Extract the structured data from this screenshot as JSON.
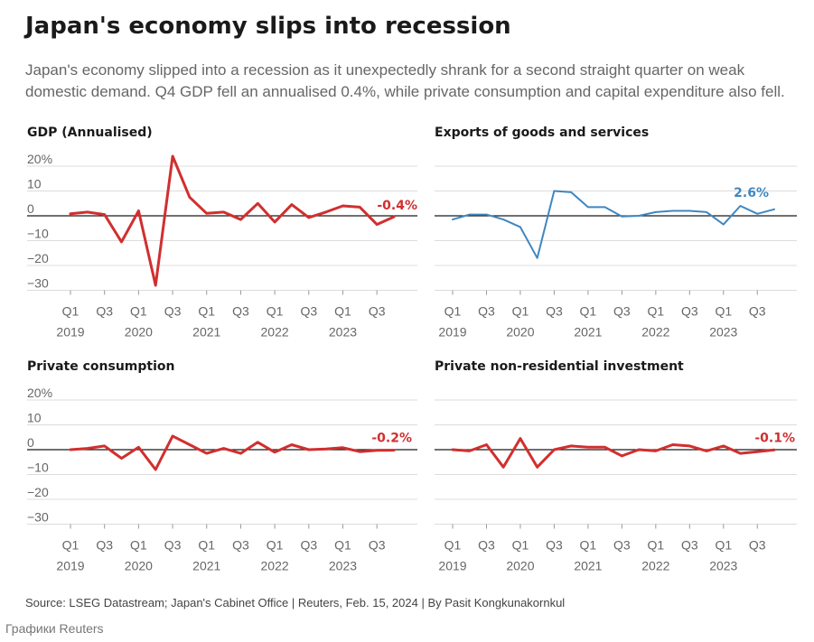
{
  "header": {
    "title": "Japan's economy slips into recession",
    "subtitle": "Japan's economy slipped into a recession as it unexpectedly shrank for a second straight quarter on weak domestic demand. Q4 GDP fell an annualised 0.4%, while private consumption and capital expenditure also fell."
  },
  "footer": {
    "source": "Source: LSEG Datastream; Japan's Cabinet Office | Reuters, Feb. 15, 2024 | By Pasit Kongkunakornkul",
    "credit": "Графики Reuters"
  },
  "colors": {
    "red": "#d12f2f",
    "blue": "#3f87c0",
    "axis": "#1a1a1a",
    "grid": "#dcdcdc"
  },
  "chart_data": [
    {
      "type": "line",
      "title": "GDP (Annualised)",
      "color": "#d12f2f",
      "ylim": [
        -30,
        20
      ],
      "yticks": [
        20,
        10,
        0,
        -10,
        -20,
        -30
      ],
      "ytick_labels": [
        "20%",
        "10",
        "0",
        "−10",
        "−20",
        "−30"
      ],
      "xtick_quarters": [
        "Q1",
        "Q3",
        "Q1",
        "Q3",
        "Q1",
        "Q3",
        "Q1",
        "Q3",
        "Q1",
        "Q3"
      ],
      "xtick_years": [
        "2019",
        "2020",
        "2021",
        "2022",
        "2023"
      ],
      "x": [
        "2019 Q1",
        "2019 Q2",
        "2019 Q3",
        "2019 Q4",
        "2020 Q1",
        "2020 Q2",
        "2020 Q3",
        "2020 Q4",
        "2021 Q1",
        "2021 Q2",
        "2021 Q3",
        "2021 Q4",
        "2022 Q1",
        "2022 Q2",
        "2022 Q3",
        "2022 Q4",
        "2023 Q1",
        "2023 Q2",
        "2023 Q3",
        "2023 Q4"
      ],
      "values": [
        0.8,
        1.5,
        0.5,
        -10.5,
        2.0,
        -28.0,
        24.0,
        7.5,
        1.0,
        1.5,
        -1.5,
        5.0,
        -2.5,
        4.5,
        -0.7,
        1.5,
        4.0,
        3.5,
        -3.5,
        -0.4
      ],
      "last_label": "-0.4%"
    },
    {
      "type": "line",
      "title": "Exports of goods and services",
      "color": "#3f87c0",
      "ylim": [
        -30,
        20
      ],
      "yticks": [
        20,
        10,
        0,
        -10,
        -20,
        -30
      ],
      "xtick_quarters": [
        "Q1",
        "Q3",
        "Q1",
        "Q3",
        "Q1",
        "Q3",
        "Q1",
        "Q3",
        "Q1",
        "Q3"
      ],
      "xtick_years": [
        "2019",
        "2020",
        "2021",
        "2022",
        "2023"
      ],
      "x": [
        "2019 Q1",
        "2019 Q2",
        "2019 Q3",
        "2019 Q4",
        "2020 Q1",
        "2020 Q2",
        "2020 Q3",
        "2020 Q4",
        "2021 Q1",
        "2021 Q2",
        "2021 Q3",
        "2021 Q4",
        "2022 Q1",
        "2022 Q2",
        "2022 Q3",
        "2022 Q4",
        "2023 Q1",
        "2023 Q2",
        "2023 Q3",
        "2023 Q4"
      ],
      "values": [
        -1.5,
        0.5,
        0.5,
        -1.5,
        -4.5,
        -17.0,
        10.0,
        9.5,
        3.5,
        3.5,
        -0.3,
        0.0,
        1.5,
        2.0,
        2.0,
        1.5,
        -3.5,
        4.0,
        0.8,
        2.6
      ],
      "last_label": "2.6%"
    },
    {
      "type": "line",
      "title": "Private consumption",
      "color": "#d12f2f",
      "ylim": [
        -30,
        20
      ],
      "yticks": [
        20,
        10,
        0,
        -10,
        -20,
        -30
      ],
      "ytick_labels": [
        "20%",
        "10",
        "0",
        "−10",
        "−20",
        "−30"
      ],
      "xtick_quarters": [
        "Q1",
        "Q3",
        "Q1",
        "Q3",
        "Q1",
        "Q3",
        "Q1",
        "Q3",
        "Q1",
        "Q3"
      ],
      "xtick_years": [
        "2019",
        "2020",
        "2021",
        "2022",
        "2023"
      ],
      "x": [
        "2019 Q1",
        "2019 Q2",
        "2019 Q3",
        "2019 Q4",
        "2020 Q1",
        "2020 Q2",
        "2020 Q3",
        "2020 Q4",
        "2021 Q1",
        "2021 Q2",
        "2021 Q3",
        "2021 Q4",
        "2022 Q1",
        "2022 Q2",
        "2022 Q3",
        "2022 Q4",
        "2023 Q1",
        "2023 Q2",
        "2023 Q3",
        "2023 Q4"
      ],
      "values": [
        0.0,
        0.5,
        1.5,
        -3.5,
        1.0,
        -8.0,
        5.5,
        2.0,
        -1.5,
        0.5,
        -1.5,
        3.0,
        -1.0,
        2.0,
        0.0,
        0.3,
        0.8,
        -0.8,
        -0.3,
        -0.2
      ],
      "last_label": "-0.2%"
    },
    {
      "type": "line",
      "title": "Private non-residential investment",
      "color": "#d12f2f",
      "ylim": [
        -30,
        20
      ],
      "yticks": [
        20,
        10,
        0,
        -10,
        -20,
        -30
      ],
      "xtick_quarters": [
        "Q1",
        "Q3",
        "Q1",
        "Q3",
        "Q1",
        "Q3",
        "Q1",
        "Q3",
        "Q1",
        "Q3"
      ],
      "xtick_years": [
        "2019",
        "2020",
        "2021",
        "2022",
        "2023"
      ],
      "x": [
        "2019 Q1",
        "2019 Q2",
        "2019 Q3",
        "2019 Q4",
        "2020 Q1",
        "2020 Q2",
        "2020 Q3",
        "2020 Q4",
        "2021 Q1",
        "2021 Q2",
        "2021 Q3",
        "2021 Q4",
        "2022 Q1",
        "2022 Q2",
        "2022 Q3",
        "2022 Q4",
        "2023 Q1",
        "2023 Q2",
        "2023 Q3",
        "2023 Q4"
      ],
      "values": [
        0.0,
        -0.5,
        2.0,
        -7.0,
        4.5,
        -7.0,
        0.0,
        1.5,
        1.0,
        1.0,
        -2.5,
        0.0,
        -0.5,
        2.0,
        1.5,
        -0.5,
        1.5,
        -1.5,
        -0.8,
        -0.1
      ],
      "last_label": "-0.1%"
    }
  ]
}
